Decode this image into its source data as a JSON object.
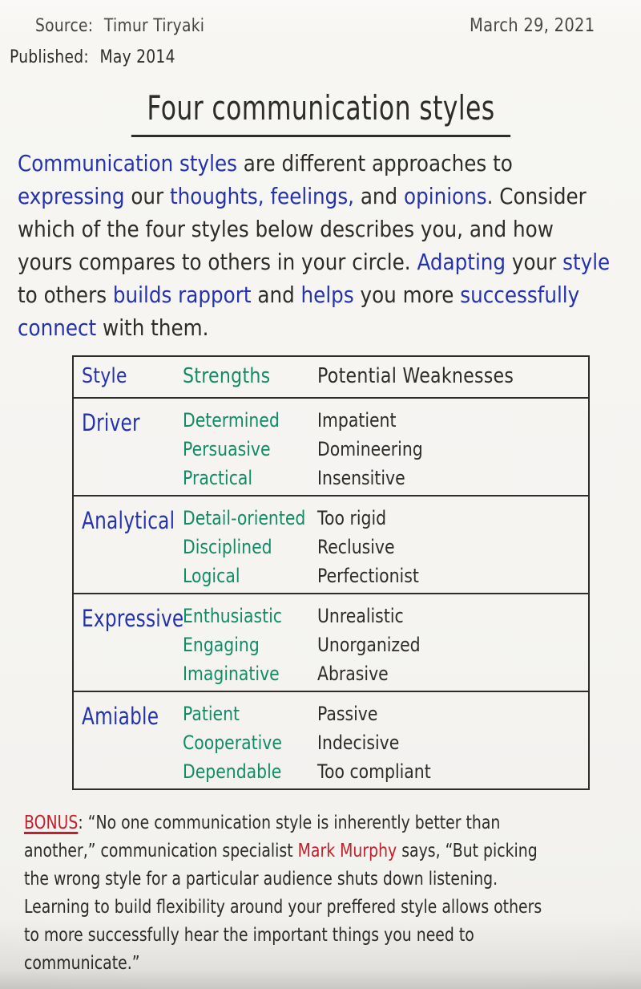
{
  "colors": {
    "paper": "#f5f4f1",
    "ink_black": "#2e2c29",
    "ink_blue": "#2433ad",
    "ink_green": "#128c68",
    "ink_red": "#c1202c"
  },
  "header": {
    "source_label": "Source:",
    "source_value": "Timur Tiryaki",
    "published_label": "Published:",
    "published_value": "May 2014",
    "date": "March 29, 2021"
  },
  "title": "Four communication styles",
  "intro": {
    "lines": [
      [
        {
          "t": "Communication styles",
          "c": "blue"
        },
        {
          "t": " are different approaches to",
          "c": "black"
        }
      ],
      [
        {
          "t": "expressing",
          "c": "blue"
        },
        {
          "t": " our ",
          "c": "black"
        },
        {
          "t": "thoughts, feelings,",
          "c": "blue"
        },
        {
          "t": " and ",
          "c": "black"
        },
        {
          "t": "opinions",
          "c": "blue"
        },
        {
          "t": ". Consider",
          "c": "black"
        }
      ],
      [
        {
          "t": "which of the four styles below describes you, and how",
          "c": "black"
        }
      ],
      [
        {
          "t": "yours compares to others in your circle. ",
          "c": "black"
        },
        {
          "t": "Adapting",
          "c": "blue"
        },
        {
          "t": " your ",
          "c": "black"
        },
        {
          "t": "style",
          "c": "blue"
        }
      ],
      [
        {
          "t": "to others ",
          "c": "black"
        },
        {
          "t": "builds rapport",
          "c": "blue"
        },
        {
          "t": " and ",
          "c": "black"
        },
        {
          "t": "helps",
          "c": "blue"
        },
        {
          "t": " you more ",
          "c": "black"
        },
        {
          "t": "successfully",
          "c": "blue"
        }
      ],
      [
        {
          "t": "connect",
          "c": "blue"
        },
        {
          "t": " with them.",
          "c": "black"
        }
      ]
    ]
  },
  "table": {
    "headers": [
      {
        "label": "Style",
        "c": "blue"
      },
      {
        "label": "Strengths",
        "c": "green"
      },
      {
        "label": "Potential Weaknesses",
        "c": "black"
      }
    ],
    "rows": [
      {
        "style": "Driver",
        "strengths": [
          "Determined",
          "Persuasive",
          "Practical"
        ],
        "weaknesses": [
          "Impatient",
          "Domineering",
          "Insensitive"
        ]
      },
      {
        "style": "Analytical",
        "strengths": [
          "Detail-oriented",
          "Disciplined",
          "Logical"
        ],
        "weaknesses": [
          "Too rigid",
          "Reclusive",
          "Perfectionist"
        ]
      },
      {
        "style": "Expressive",
        "strengths": [
          "Enthusiastic",
          "Engaging",
          "Imaginative"
        ],
        "weaknesses": [
          "Unrealistic",
          "Unorganized",
          "Abrasive"
        ]
      },
      {
        "style": "Amiable",
        "strengths": [
          "Patient",
          "Cooperative",
          "Dependable"
        ],
        "weaknesses": [
          "Passive",
          "Indecisive",
          "Too compliant"
        ]
      }
    ]
  },
  "bonus": {
    "lines": [
      [
        {
          "t": "BONUS",
          "c": "red",
          "u": true
        },
        {
          "t": ": ",
          "c": "black"
        },
        {
          "t": "“No one communication style is inherently better than",
          "c": "black"
        }
      ],
      [
        {
          "t": "another,” communication specialist ",
          "c": "black"
        },
        {
          "t": "Mark Murphy",
          "c": "red"
        },
        {
          "t": " says, “But picking",
          "c": "black"
        }
      ],
      [
        {
          "t": "the wrong style for a particular audience shuts down listening.",
          "c": "black"
        }
      ],
      [
        {
          "t": "Learning to build flexibility around your preffered style allows others",
          "c": "black"
        }
      ],
      [
        {
          "t": "to more successfully hear the important things you need to",
          "c": "black"
        }
      ],
      [
        {
          "t": "communicate.”",
          "c": "black"
        }
      ]
    ]
  }
}
